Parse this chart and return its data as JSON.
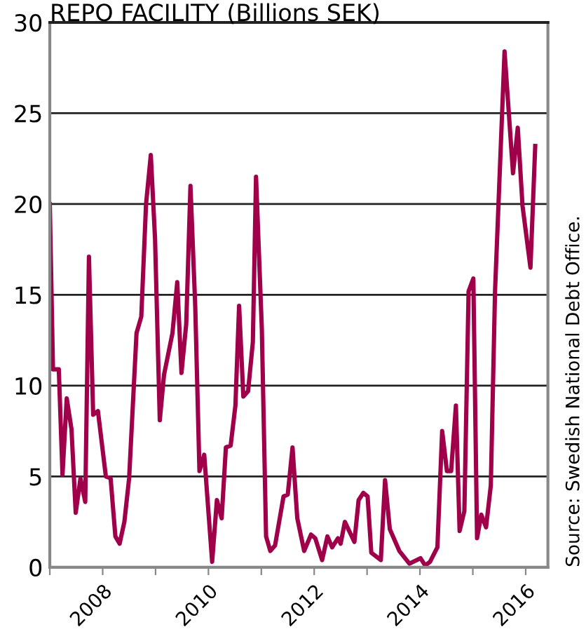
{
  "chart_data": {
    "type": "line",
    "title": "REPO FACILITY (Billions SEK)",
    "annotations": [
      "Source: Swedish National Debt Office."
    ],
    "x": [
      2007.0,
      2007.06,
      2007.17,
      2007.24,
      2007.32,
      2007.41,
      2007.49,
      2007.58,
      2007.67,
      2007.74,
      2007.82,
      2007.91,
      2008.06,
      2008.15,
      2008.24,
      2008.32,
      2008.41,
      2008.5,
      2008.64,
      2008.73,
      2008.82,
      2008.91,
      2008.99,
      2009.08,
      2009.16,
      2009.32,
      2009.41,
      2009.49,
      2009.58,
      2009.66,
      2009.75,
      2009.83,
      2009.92,
      2010.07,
      2010.16,
      2010.25,
      2010.33,
      2010.42,
      2010.51,
      2010.58,
      2010.66,
      2010.75,
      2010.84,
      2010.9,
      2011.01,
      2011.09,
      2011.17,
      2011.26,
      2011.42,
      2011.5,
      2011.59,
      2011.68,
      2011.81,
      2011.94,
      2012.02,
      2012.15,
      2012.25,
      2012.34,
      2012.45,
      2012.5,
      2012.58,
      2012.76,
      2012.84,
      2012.93,
      2013.01,
      2013.08,
      2013.26,
      2013.34,
      2013.43,
      2013.61,
      2013.8,
      2014.01,
      2014.1,
      2014.19,
      2014.33,
      2014.42,
      2014.51,
      2014.59,
      2014.68,
      2014.75,
      2014.84,
      2014.92,
      2015.01,
      2015.08,
      2015.16,
      2015.25,
      2015.34,
      2015.42,
      2015.6,
      2015.76,
      2015.85,
      2015.94,
      2016.09,
      2016.18
    ],
    "series": [
      {
        "color": "#a0004a",
        "values": [
          20.0,
          10.9,
          10.9,
          5.1,
          9.3,
          7.6,
          3.0,
          4.9,
          3.6,
          17.1,
          8.4,
          8.6,
          5.0,
          4.9,
          1.7,
          1.3,
          2.5,
          4.9,
          12.9,
          13.8,
          20.0,
          22.7,
          18.1,
          8.1,
          10.6,
          12.9,
          15.7,
          10.7,
          13.4,
          21.0,
          14.4,
          5.3,
          6.2,
          0.3,
          3.7,
          2.7,
          6.6,
          6.7,
          8.9,
          14.4,
          9.4,
          9.7,
          12.4,
          21.5,
          13.1,
          1.7,
          0.9,
          1.2,
          3.9,
          4.0,
          6.6,
          2.7,
          0.9,
          1.8,
          1.6,
          0.4,
          1.7,
          1.1,
          1.6,
          1.3,
          2.5,
          1.4,
          3.7,
          4.1,
          3.9,
          0.8,
          0.4,
          4.8,
          2.1,
          0.9,
          0.2,
          0.5,
          0.1,
          0.3,
          1.1,
          7.5,
          5.3,
          5.3,
          8.9,
          2.0,
          3.1,
          15.2,
          15.9,
          1.6,
          2.9,
          2.2,
          4.5,
          15.2,
          28.4,
          21.7,
          24.2,
          19.9,
          16.5,
          23.2
        ]
      }
    ],
    "xlim": [
      2007.0,
      2016.42
    ],
    "xticks": [
      {
        "value": 2007,
        "label": null
      },
      2008,
      {
        "value": 2009,
        "label": null
      },
      2010,
      {
        "value": 2011,
        "label": null
      },
      2012,
      {
        "value": 2013,
        "label": null
      },
      2014,
      {
        "value": 2015,
        "label": null
      },
      2016
    ],
    "ylim": [
      0,
      30
    ],
    "yticks": [
      0,
      5,
      10,
      15,
      20,
      25,
      30
    ],
    "grid": "y",
    "legend": false,
    "marker": "none",
    "line_style": "solid"
  }
}
